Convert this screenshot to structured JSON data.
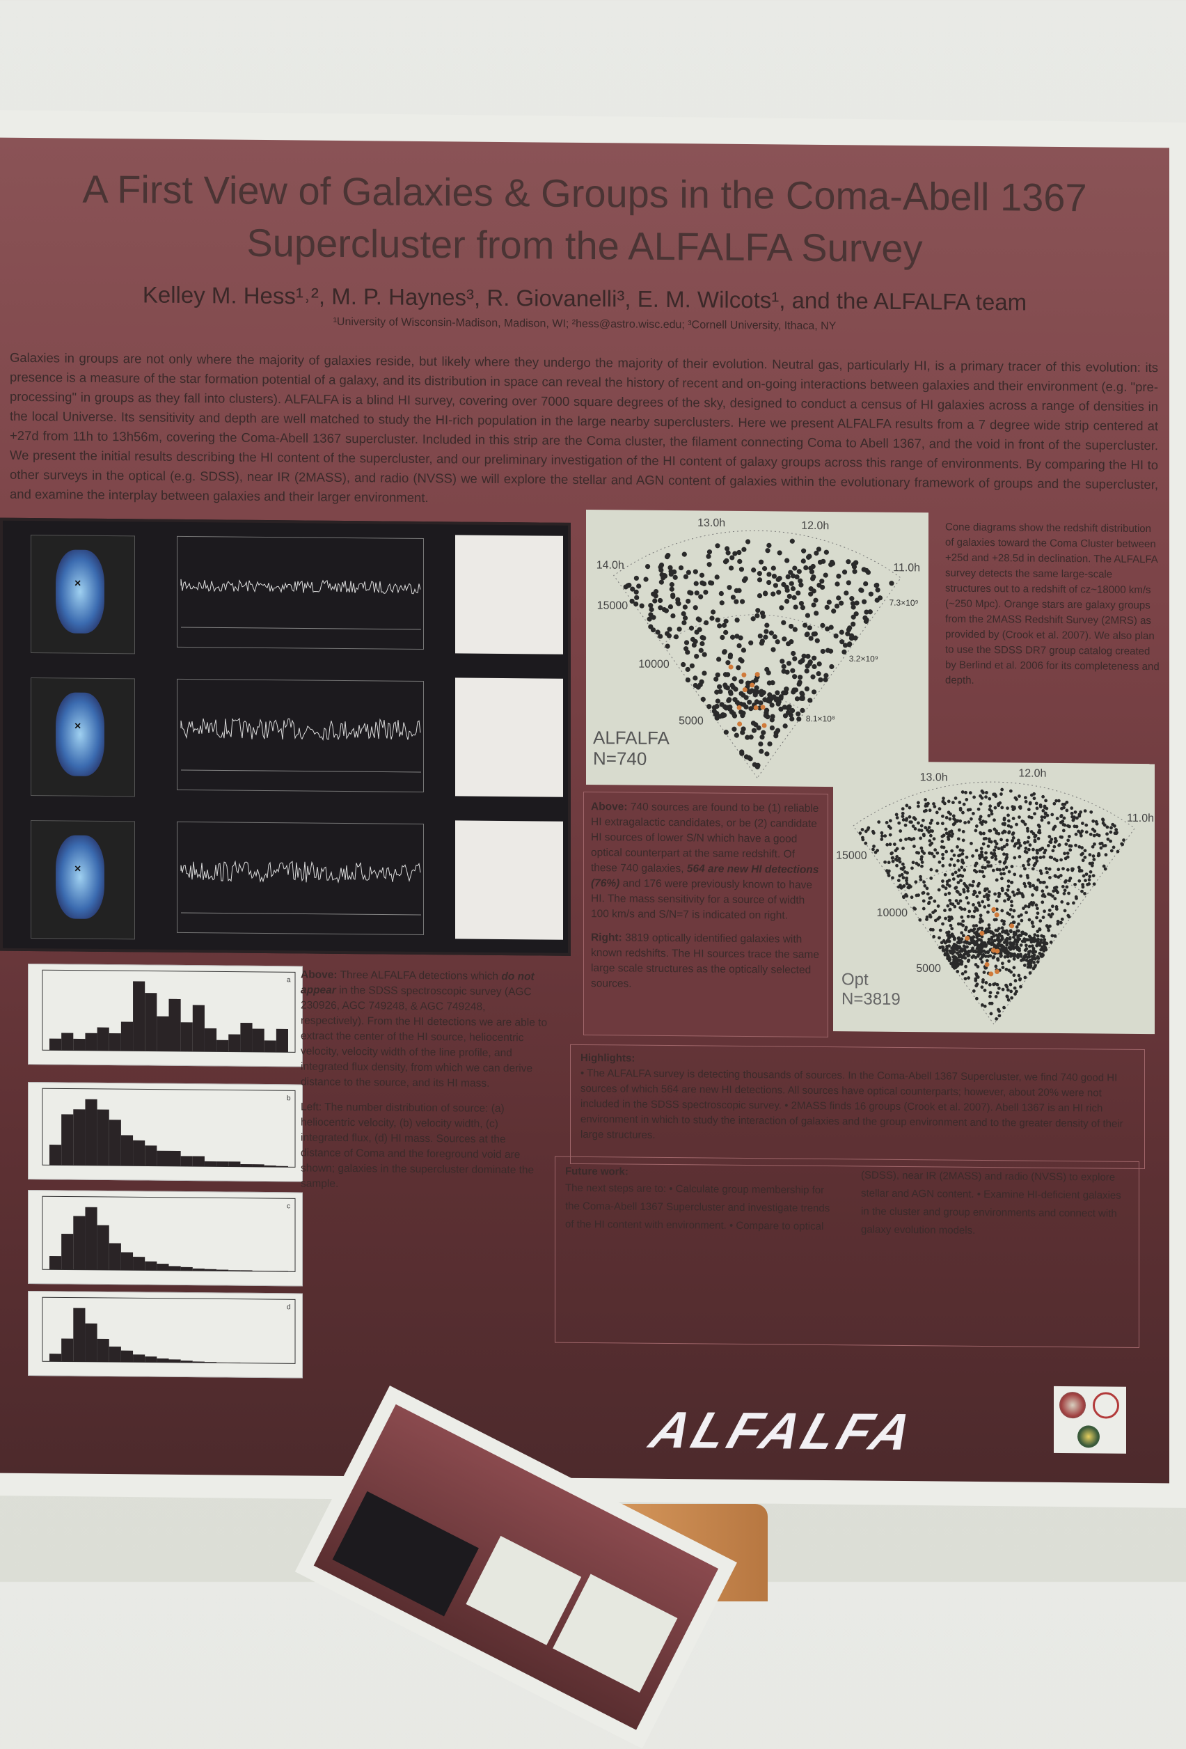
{
  "poster": {
    "title_line1": "A First View of Galaxies & Groups in the Coma-Abell 1367",
    "title_line2": "Supercluster from the ALFALFA Survey",
    "authors": "Kelley M. Hess¹˒², M. P. Haynes³, R. Giovanelli³, E. M. Wilcots¹, and the ALFALFA team",
    "affiliations": "¹University of Wisconsin-Madison, Madison, WI; ²hess@astro.wisc.edu; ³Cornell University, Ithaca, NY",
    "abstract": "Galaxies in groups are not only where the majority of galaxies reside, but likely where they undergo the majority of their evolution. Neutral gas, particularly HI, is a primary tracer of this evolution: its presence is a measure of the star formation potential of a galaxy, and its distribution in space can reveal the history of recent and on-going interactions between galaxies and their environment (e.g. \"pre-processing\" in groups as they fall into clusters). ALFALFA is a blind HI survey, covering over 7000 square degrees of the sky, designed to conduct a census of HI galaxies across a range of densities in the local Universe. Its sensitivity and depth are well matched to study the HI-rich population in the large nearby superclusters. Here we present ALFALFA results from a 7 degree wide strip centered at +27d from 11h to 13h56m, covering the Coma-Abell 1367 supercluster. Included in this strip are the Coma cluster, the filament connecting Coma to Abell 1367, and the void in front of the supercluster. We present the initial results describing the HI content of the supercluster, and our preliminary investigation of the HI content of galaxy groups across this range of environments. By comparing the HI to other surveys in the optical (e.g. SDSS), near IR (2MASS), and radio (NVSS) we will explore the stellar and AGN content of galaxies within the evolutionary framework of groups and the supercluster, and examine the interplay between galaxies and their larger environment."
  },
  "cone1": {
    "ra_labels": [
      "14.0h",
      "13.0h",
      "12.0h",
      "11.0h"
    ],
    "cz_labels": [
      "15000",
      "10000",
      "5000"
    ],
    "mass_labels": [
      "7.3×10⁹",
      "3.2×10⁹",
      "8.1×10⁸"
    ],
    "survey": "ALFALFA",
    "count": "N=740",
    "point_color": "#2a2a2a",
    "group_color": "#d07a3a"
  },
  "cone2": {
    "ra_labels": [
      "13.0h",
      "12.0h",
      "11.0h"
    ],
    "cz_labels": [
      "15000",
      "10000",
      "5000"
    ],
    "survey": "Opt",
    "count": "N=3819"
  },
  "cone_caption": "Cone diagrams show the redshift distribution of galaxies toward the Coma Cluster between +25d and +28.5d in declination. The ALFALFA survey detects the same large-scale structures out to a redshift of cz~18000 km/s (~250 Mpc). Orange stars are galaxy groups from the 2MASS Redshift Survey (2MRS) as provided by (Crook et al. 2007). We also plan to use the SDSS DR7 group catalog created by Berlind et al. 2006 for its completeness and depth.",
  "above_caption": {
    "label": "Above:",
    "text": " 740 sources are found to be (1) reliable HI extragalactic candidates, or be (2) candidate HI sources of lower S/N which have a good optical counterpart at the same redshift. Of these 740 galaxies, ",
    "emphasis": "564 are new HI detections (76%)",
    "text2": " and 176 were previously known to have HI. The mass sensitivity for a source of width 100 km/s and S/N=7 is indicated on right."
  },
  "right_caption": {
    "label": "Right:",
    "text": " 3819 optically identified galaxies with known redshifts. The HI sources trace the same large scale structures as the optically selected sources."
  },
  "spectra_caption": {
    "label": "Above:",
    "text": " Three ALFALFA detections which ",
    "emphasis": "do not appear",
    "text2": " in the SDSS spectroscopic survey (AGC 230926, AGC 749248, & AGC 749248, respectively). From the HI detections we are able to extract the center of the HI source, heliocentric velocity, velocity width of the line profile, and integrated flux density, from which we can derive distance to the source, and its HI mass."
  },
  "hist_caption": "Left: The number distribution of source: (a) heliocentric velocity, (b) velocity width, (c) integrated flux, (d) HI mass. Sources at the distance of Coma and the foreground void are shown; galaxies in the supercluster dominate the sample.",
  "histograms": [
    {
      "label": "a",
      "values": [
        2,
        3,
        2,
        3,
        4,
        3,
        5,
        12,
        10,
        6,
        9,
        5,
        8,
        4,
        2,
        3,
        5,
        4,
        2,
        4
      ]
    },
    {
      "label": "b",
      "values": [
        4,
        10,
        11,
        13,
        11,
        9,
        6,
        5,
        4,
        3,
        3,
        2,
        2,
        1,
        1,
        1,
        0.5,
        0.5,
        0.3,
        0.2
      ]
    },
    {
      "label": "c",
      "values": [
        3,
        8,
        12,
        14,
        10,
        6,
        4,
        3,
        2,
        1.5,
        1,
        0.8,
        0.5,
        0.4,
        0.3,
        0.2,
        0.2,
        0.1,
        0.1,
        0.1
      ]
    },
    {
      "label": "d",
      "values": [
        2,
        6,
        14,
        10,
        6,
        4,
        3,
        2,
        1.5,
        1,
        0.8,
        0.5,
        0.3,
        0.2,
        0.1,
        0.1,
        0,
        0,
        0,
        0
      ]
    }
  ],
  "highlights": {
    "heading": "Highlights:",
    "text": "• The ALFALFA survey is detecting thousands of sources. In the Coma-Abell 1367 Supercluster, we find 740 good HI sources of which 564 are new HI detections. All sources have optical counterparts; however, about 20% were not included in the SDSS spectroscopic survey. • 2MASS finds 16 groups (Crook et al. 2007). Abell 1367 is an HI rich environment in which to study the interaction of galaxies and the group environment and to the greater density of their large structures."
  },
  "future": {
    "heading": "Future work:",
    "text": "The next steps are to: • Calculate group membership for the Coma-Abell 1367 Supercluster and investigate trends of the HI content with environment. • Compare to optical (SDSS), near IR (2MASS) and radio (NVSS) to explore stellar and AGN content. • Examine HI-deficient galaxies in the cluster and group environments and connect with galaxy evolution models."
  },
  "logo_text": "ALFALFA"
}
